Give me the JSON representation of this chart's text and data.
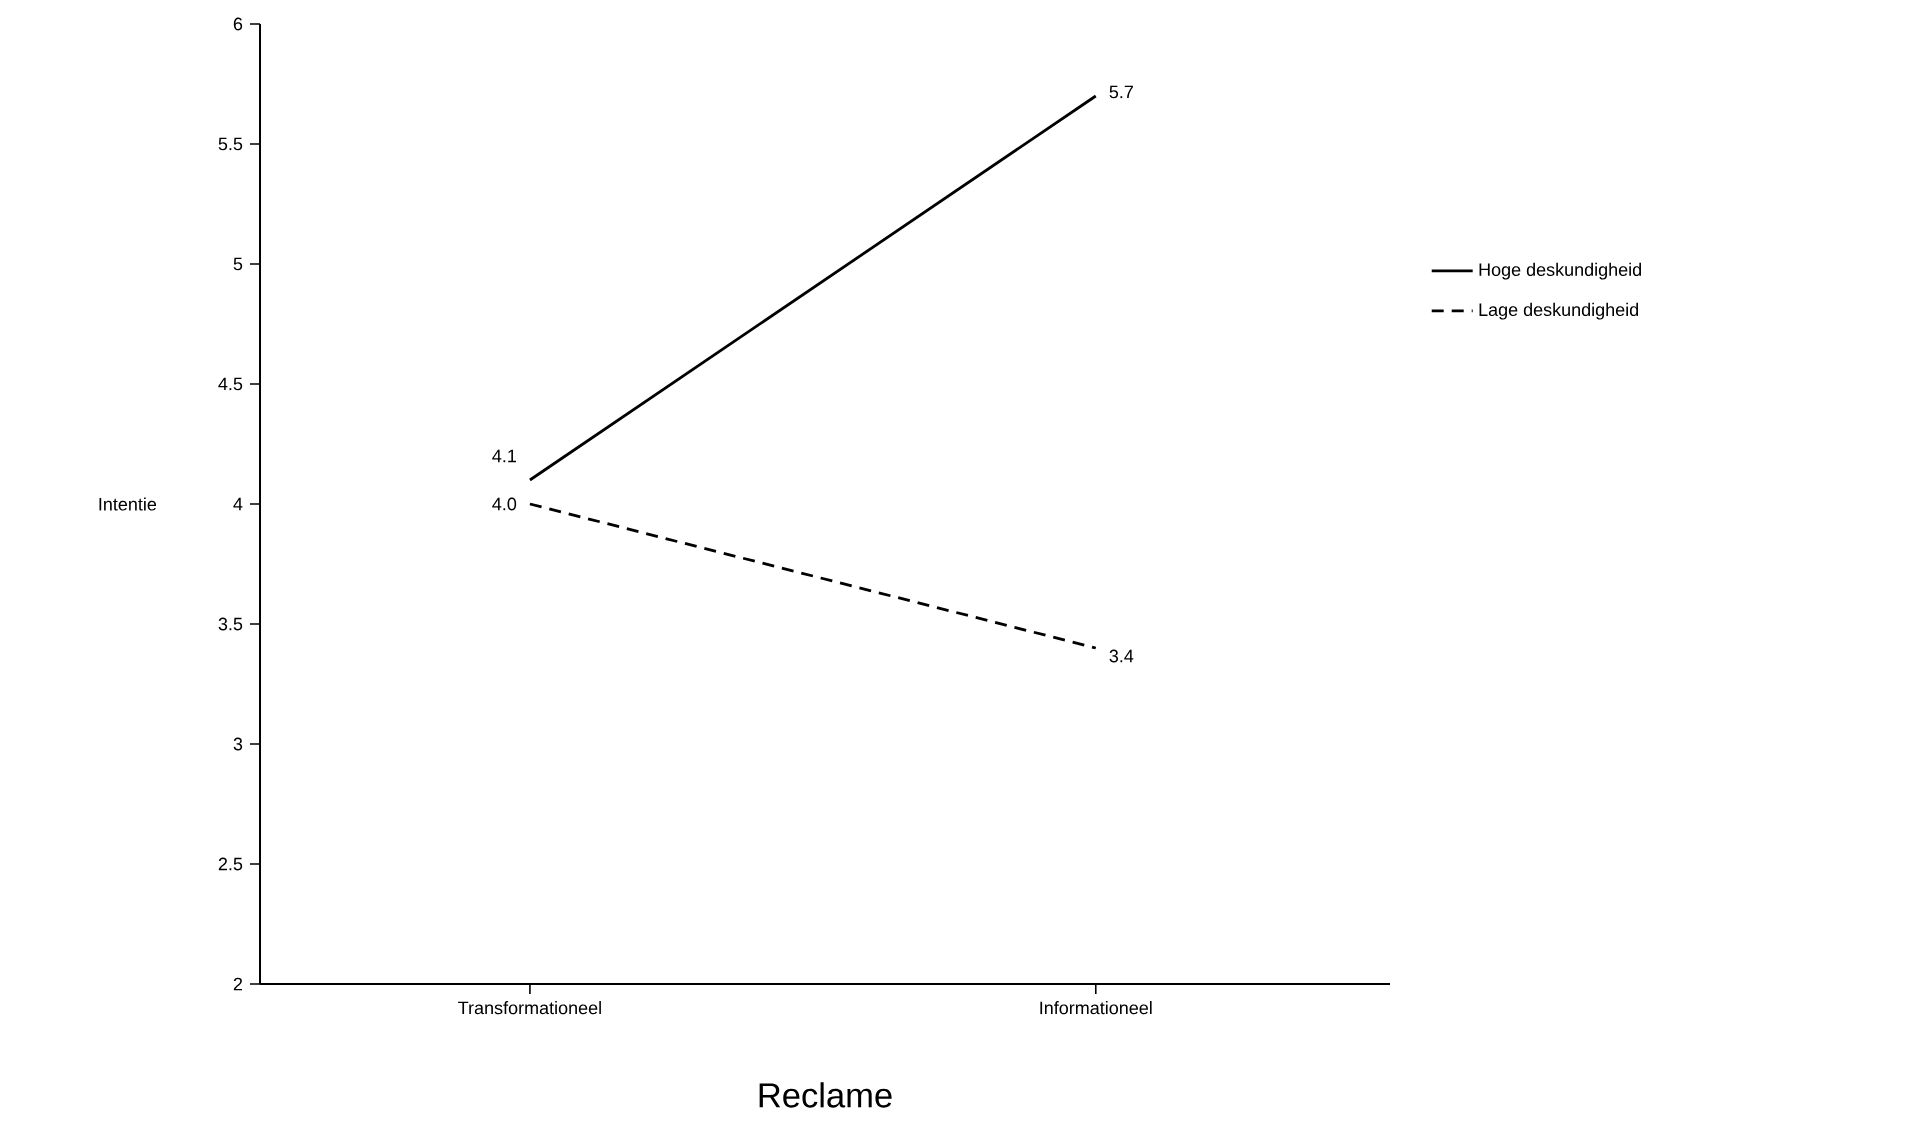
{
  "chart_data": {
    "type": "line",
    "xlabel": "Reclame",
    "ylabel": "Intentie",
    "categories": [
      "Transformationeel",
      "Informationeel"
    ],
    "series": [
      {
        "name": "Hoge deskundigheid",
        "color": "#000000",
        "line_style": "solid",
        "values": [
          4.1,
          5.7
        ],
        "value_labels": [
          "4.1",
          "5.7"
        ]
      },
      {
        "name": "Lage deskundigheid",
        "color": "#000000",
        "line_style": "dashed",
        "values": [
          4.0,
          3.4
        ],
        "value_labels": [
          "4.0",
          "3.4"
        ]
      }
    ],
    "ylim": [
      2,
      6
    ],
    "yticks": [
      2,
      2.5,
      3,
      3.5,
      4,
      4.5,
      5,
      5.5,
      6
    ],
    "grid": false,
    "legend": "right",
    "marker": "none"
  }
}
